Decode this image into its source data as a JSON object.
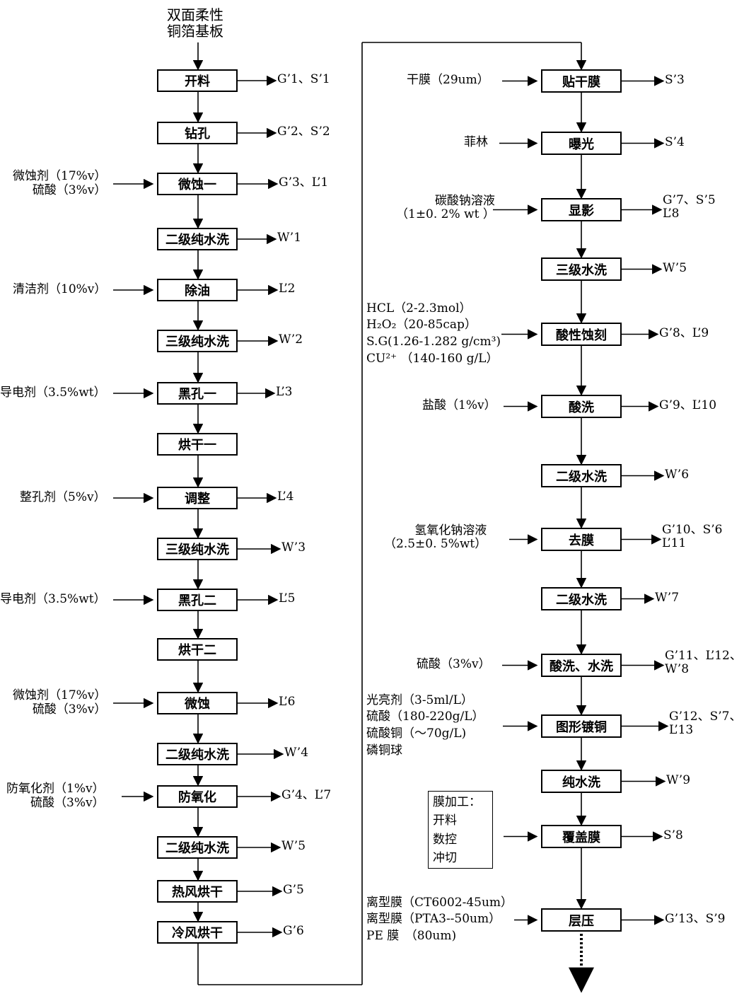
{
  "start": "双面柔性\n铜箔基板",
  "left_steps": [
    {
      "id": "L1",
      "label": "开料",
      "input": "",
      "output": "G’1、S’1"
    },
    {
      "id": "L2",
      "label": "钻孔",
      "input": "",
      "output": "G’2、S’2"
    },
    {
      "id": "L3",
      "label": "微蚀一",
      "input": "微蚀剂（17%v）\n硫酸（3%v）",
      "output": "G’3、L’1"
    },
    {
      "id": "L4",
      "label": "二级纯水洗",
      "input": "",
      "output": "W’1"
    },
    {
      "id": "L5",
      "label": "除油",
      "input": "清洁剂（10%v）",
      "output": "L’2"
    },
    {
      "id": "L6",
      "label": "三级纯水洗",
      "input": "",
      "output": "W’2"
    },
    {
      "id": "L7",
      "label": "黑孔一",
      "input": "导电剂（3.5%wt）",
      "output": "L’3"
    },
    {
      "id": "L8",
      "label": "烘干一",
      "input": "",
      "output": ""
    },
    {
      "id": "L9",
      "label": "调整",
      "input": "整孔剂（5%v）",
      "output": "L’4"
    },
    {
      "id": "L10",
      "label": "三级纯水洗",
      "input": "",
      "output": "W’3"
    },
    {
      "id": "L11",
      "label": "黑孔二",
      "input": "导电剂（3.5%wt）",
      "output": "L’5"
    },
    {
      "id": "L12",
      "label": "烘干二",
      "input": "",
      "output": ""
    },
    {
      "id": "L13",
      "label": "微蚀",
      "input": "微蚀剂（17%v）\n硫酸（3%v）",
      "output": "L’6"
    },
    {
      "id": "L14",
      "label": "二级纯水洗",
      "input": "",
      "output": "W’4"
    },
    {
      "id": "L15",
      "label": "防氧化",
      "input": "防氧化剂（1%v）\n硫酸（3%v）",
      "output": "G’4、L’7"
    },
    {
      "id": "L16",
      "label": "二级纯水洗",
      "input": "",
      "output": "W’5"
    },
    {
      "id": "L17",
      "label": "热风烘干",
      "input": "",
      "output": "G’5"
    },
    {
      "id": "L18",
      "label": "冷风烘干",
      "input": "",
      "output": "G’6"
    }
  ],
  "right_steps": [
    {
      "id": "R1",
      "label": "贴干膜",
      "input": "干膜（29um）",
      "output": "S’3"
    },
    {
      "id": "R2",
      "label": "曝光",
      "input": "菲林",
      "output": "S’4"
    },
    {
      "id": "R3",
      "label": "显影",
      "input": "碳酸钠溶液\n（1±0. 2% wt ）",
      "output": "G’7、S’5\nL’8"
    },
    {
      "id": "R4",
      "label": "三级水洗",
      "input": "",
      "output": "W’5"
    },
    {
      "id": "R5",
      "label": "酸性蚀刻",
      "input": "HCL（2-2.3mol）\nH₂O₂（20-85cap）\nS.G(1.26-1.282 g/cm³)\nCU²⁺ （140-160 g/L）",
      "output": "G’8、L’9"
    },
    {
      "id": "R6",
      "label": "酸洗",
      "input": "盐酸（1%v）",
      "output": "G’9、L’10"
    },
    {
      "id": "R7",
      "label": "二级水洗",
      "input": "",
      "output": "W’6"
    },
    {
      "id": "R8",
      "label": "去膜",
      "input": "氢氧化钠溶液\n（2.5±0. 5%wt）",
      "output": "G’10、S’6\nL’11"
    },
    {
      "id": "R9",
      "label": "二级水洗",
      "input": "",
      "output": "W’7"
    },
    {
      "id": "R10",
      "label": "酸洗、水洗",
      "input": "硫酸（3%v）",
      "output": "G’11、L’12、\nW’8"
    },
    {
      "id": "R11",
      "label": "图形镀铜",
      "input": "光亮剂（3-5ml/L）\n硫酸（180-220g/L）\n硫酸铜（～70g/L)\n磷铜球",
      "output": "G’12、S’7、\nL’13"
    },
    {
      "id": "R12",
      "label": "纯水洗",
      "input": "",
      "output": "W’9"
    },
    {
      "id": "R13",
      "label": "覆盖膜",
      "input": "膜加工：\n开料\n数控\n冲切",
      "output": "S’8"
    },
    {
      "id": "R14",
      "label": "层压",
      "input": "离型膜（CT6002-45um）\n离型膜（PTA3--50um）\nPE 膜　（80um)",
      "output": "G’13、S’9"
    }
  ]
}
